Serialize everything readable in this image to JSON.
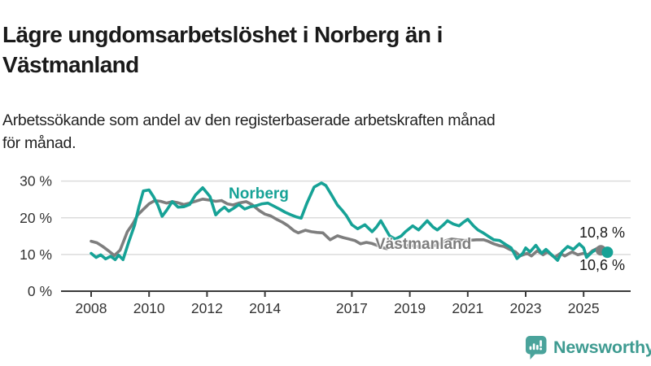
{
  "header": {
    "title_lines": [
      "Lägre ungdomsarbetslöshet i Norberg än i",
      "Västmanland"
    ],
    "subtitle_lines": [
      "Arbetssökande som andel av den registerbaserade arbetskraften månad",
      "för månad."
    ]
  },
  "chart_data": {
    "type": "line",
    "title": "Lägre ungdomsarbetslöshet i Norberg än i Västmanland",
    "subtitle": "Arbetssökande som andel av den registerbaserade arbetskraften månad för månad.",
    "xlabel": "",
    "ylabel": "",
    "x_unit": "decimal_year_monthly",
    "ylim": [
      0,
      30
    ],
    "xlim": [
      2007.6,
      2026.3
    ],
    "grid": "horizontal",
    "legend_position": "inline-on-lines",
    "yticks": [
      {
        "value": 0,
        "label": "0 %"
      },
      {
        "value": 10,
        "label": "10 %"
      },
      {
        "value": 20,
        "label": "20 %"
      },
      {
        "value": 30,
        "label": "30 %"
      }
    ],
    "xticks": [
      {
        "value": 2008,
        "label": "2008"
      },
      {
        "value": 2010,
        "label": "2010"
      },
      {
        "value": 2012,
        "label": "2012"
      },
      {
        "value": 2014,
        "label": "2014"
      },
      {
        "value": 2017,
        "label": "2017"
      },
      {
        "value": 2019,
        "label": "2019"
      },
      {
        "value": 2021,
        "label": "2021"
      },
      {
        "value": 2023,
        "label": "2023"
      },
      {
        "value": 2025,
        "label": "2025"
      }
    ],
    "series": [
      {
        "name": "Norberg",
        "color": "#16a296",
        "end_label": "10,6 %",
        "end_value": 10.6,
        "points": [
          [
            2008.0,
            10.3
          ],
          [
            2008.17,
            9.2
          ],
          [
            2008.33,
            9.9
          ],
          [
            2008.5,
            8.8
          ],
          [
            2008.67,
            9.5
          ],
          [
            2008.83,
            8.6
          ],
          [
            2008.95,
            9.8
          ],
          [
            2009.1,
            8.6
          ],
          [
            2009.3,
            13.5
          ],
          [
            2009.5,
            18.0
          ],
          [
            2009.65,
            23.0
          ],
          [
            2009.8,
            27.3
          ],
          [
            2010.0,
            27.6
          ],
          [
            2010.15,
            25.8
          ],
          [
            2010.3,
            23.5
          ],
          [
            2010.45,
            20.4
          ],
          [
            2010.6,
            22.0
          ],
          [
            2010.8,
            24.4
          ],
          [
            2011.0,
            22.9
          ],
          [
            2011.2,
            23.0
          ],
          [
            2011.4,
            23.6
          ],
          [
            2011.6,
            26.2
          ],
          [
            2011.85,
            28.2
          ],
          [
            2012.1,
            25.8
          ],
          [
            2012.3,
            20.8
          ],
          [
            2012.45,
            22.0
          ],
          [
            2012.6,
            22.9
          ],
          [
            2012.75,
            21.8
          ],
          [
            2012.9,
            22.5
          ],
          [
            2013.1,
            23.6
          ],
          [
            2013.3,
            22.4
          ],
          [
            2013.5,
            23.0
          ],
          [
            2013.7,
            23.3
          ],
          [
            2013.9,
            23.8
          ],
          [
            2014.1,
            24.0
          ],
          [
            2014.3,
            23.2
          ],
          [
            2014.5,
            22.4
          ],
          [
            2014.7,
            21.5
          ],
          [
            2014.9,
            20.8
          ],
          [
            2015.1,
            20.2
          ],
          [
            2015.25,
            19.9
          ],
          [
            2015.45,
            24.0
          ],
          [
            2015.7,
            28.4
          ],
          [
            2015.95,
            29.5
          ],
          [
            2016.1,
            28.8
          ],
          [
            2016.3,
            26.2
          ],
          [
            2016.5,
            23.5
          ],
          [
            2016.65,
            22.2
          ],
          [
            2016.8,
            20.7
          ],
          [
            2017.0,
            18.1
          ],
          [
            2017.2,
            17.0
          ],
          [
            2017.45,
            18.1
          ],
          [
            2017.7,
            16.2
          ],
          [
            2017.85,
            17.5
          ],
          [
            2018.0,
            19.2
          ],
          [
            2018.3,
            15.1
          ],
          [
            2018.5,
            14.2
          ],
          [
            2018.7,
            15.0
          ],
          [
            2018.85,
            16.2
          ],
          [
            2019.1,
            17.8
          ],
          [
            2019.3,
            16.7
          ],
          [
            2019.6,
            19.2
          ],
          [
            2019.8,
            17.5
          ],
          [
            2019.95,
            16.7
          ],
          [
            2020.15,
            18.0
          ],
          [
            2020.3,
            19.2
          ],
          [
            2020.5,
            18.3
          ],
          [
            2020.7,
            17.8
          ],
          [
            2020.85,
            18.8
          ],
          [
            2021.0,
            19.6
          ],
          [
            2021.2,
            17.8
          ],
          [
            2021.35,
            16.7
          ],
          [
            2021.55,
            15.8
          ],
          [
            2021.7,
            15.0
          ],
          [
            2021.9,
            14.0
          ],
          [
            2022.1,
            13.8
          ],
          [
            2022.2,
            13.3
          ],
          [
            2022.35,
            12.5
          ],
          [
            2022.5,
            11.8
          ],
          [
            2022.7,
            8.9
          ],
          [
            2022.9,
            10.3
          ],
          [
            2023.0,
            11.8
          ],
          [
            2023.15,
            10.7
          ],
          [
            2023.35,
            12.5
          ],
          [
            2023.55,
            10.3
          ],
          [
            2023.7,
            11.4
          ],
          [
            2023.9,
            9.9
          ],
          [
            2024.1,
            8.4
          ],
          [
            2024.25,
            10.7
          ],
          [
            2024.45,
            12.2
          ],
          [
            2024.65,
            11.4
          ],
          [
            2024.85,
            12.9
          ],
          [
            2025.0,
            11.8
          ],
          [
            2025.1,
            9.2
          ],
          [
            2025.3,
            10.7
          ],
          [
            2025.45,
            11.4
          ],
          [
            2025.6,
            10.3
          ],
          [
            2025.75,
            10.6
          ]
        ]
      },
      {
        "name": "Västmanland",
        "color": "#7e7e7e",
        "end_label": "10,8 %",
        "end_value": 10.8,
        "points": [
          [
            2008.0,
            13.6
          ],
          [
            2008.2,
            13.2
          ],
          [
            2008.4,
            12.2
          ],
          [
            2008.6,
            11.0
          ],
          [
            2008.8,
            9.7
          ],
          [
            2009.0,
            11.2
          ],
          [
            2009.25,
            16.2
          ],
          [
            2009.45,
            18.5
          ],
          [
            2009.6,
            20.7
          ],
          [
            2009.8,
            22.3
          ],
          [
            2010.0,
            23.8
          ],
          [
            2010.2,
            24.7
          ],
          [
            2010.4,
            24.5
          ],
          [
            2010.6,
            24.0
          ],
          [
            2010.8,
            24.4
          ],
          [
            2011.0,
            24.1
          ],
          [
            2011.2,
            23.6
          ],
          [
            2011.4,
            24.0
          ],
          [
            2011.6,
            24.5
          ],
          [
            2011.85,
            25.1
          ],
          [
            2012.1,
            24.8
          ],
          [
            2012.3,
            24.5
          ],
          [
            2012.5,
            24.7
          ],
          [
            2012.7,
            23.8
          ],
          [
            2012.9,
            23.5
          ],
          [
            2013.1,
            24.0
          ],
          [
            2013.35,
            24.4
          ],
          [
            2013.55,
            23.6
          ],
          [
            2013.8,
            22.0
          ],
          [
            2014.0,
            21.0
          ],
          [
            2014.2,
            20.5
          ],
          [
            2014.4,
            19.6
          ],
          [
            2014.6,
            18.8
          ],
          [
            2014.8,
            17.8
          ],
          [
            2015.0,
            16.5
          ],
          [
            2015.15,
            15.9
          ],
          [
            2015.4,
            16.6
          ],
          [
            2015.6,
            16.2
          ],
          [
            2015.8,
            16.0
          ],
          [
            2016.0,
            15.9
          ],
          [
            2016.25,
            14.0
          ],
          [
            2016.5,
            15.1
          ],
          [
            2016.7,
            14.6
          ],
          [
            2016.9,
            14.2
          ],
          [
            2017.1,
            13.8
          ],
          [
            2017.3,
            12.9
          ],
          [
            2017.5,
            13.3
          ],
          [
            2017.7,
            13.0
          ],
          [
            2017.9,
            12.4
          ],
          [
            2018.1,
            11.8
          ],
          [
            2018.2,
            11.6
          ],
          [
            2018.4,
            12.0
          ],
          [
            2018.6,
            12.2
          ],
          [
            2018.8,
            12.4
          ],
          [
            2019.0,
            12.5
          ],
          [
            2019.25,
            12.2
          ],
          [
            2019.5,
            12.0
          ],
          [
            2019.75,
            12.3
          ],
          [
            2020.0,
            12.7
          ],
          [
            2020.25,
            13.8
          ],
          [
            2020.45,
            14.2
          ],
          [
            2020.65,
            14.0
          ],
          [
            2020.9,
            13.8
          ],
          [
            2021.1,
            13.9
          ],
          [
            2021.3,
            14.0
          ],
          [
            2021.55,
            14.0
          ],
          [
            2021.7,
            13.6
          ],
          [
            2021.9,
            12.9
          ],
          [
            2022.1,
            12.4
          ],
          [
            2022.25,
            12.2
          ],
          [
            2022.45,
            11.4
          ],
          [
            2022.65,
            10.7
          ],
          [
            2022.8,
            9.6
          ],
          [
            2023.05,
            10.3
          ],
          [
            2023.2,
            9.6
          ],
          [
            2023.4,
            11.0
          ],
          [
            2023.6,
            9.9
          ],
          [
            2023.75,
            10.7
          ],
          [
            2024.0,
            9.2
          ],
          [
            2024.2,
            10.3
          ],
          [
            2024.35,
            9.6
          ],
          [
            2024.6,
            10.7
          ],
          [
            2024.8,
            9.9
          ],
          [
            2025.0,
            10.3
          ],
          [
            2025.15,
            9.9
          ],
          [
            2025.3,
            11.0
          ],
          [
            2025.5,
            11.8
          ],
          [
            2025.65,
            11.2
          ],
          [
            2025.75,
            10.8
          ]
        ]
      }
    ]
  },
  "logo": {
    "text": "Newsworthy",
    "icon": "newsworthy-bubble-chart-icon",
    "text_color": "#3e9b91",
    "icon_color": "#4aa39b"
  }
}
